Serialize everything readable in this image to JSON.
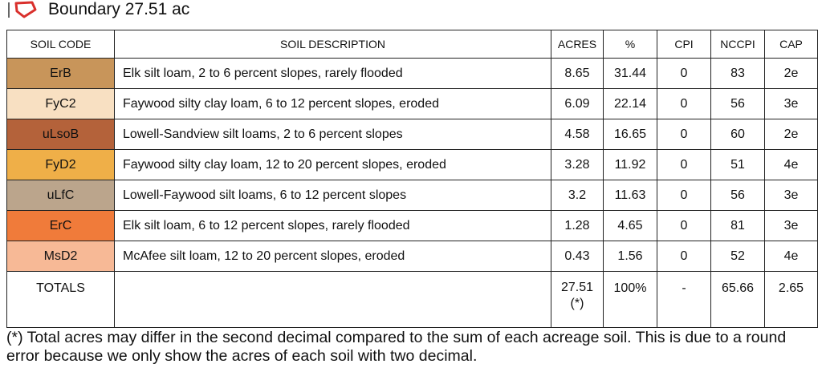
{
  "header": {
    "title": "Boundary 27.51 ac"
  },
  "table": {
    "columns": [
      "SOIL CODE",
      "SOIL DESCRIPTION",
      "ACRES",
      "%",
      "CPI",
      "NCCPI",
      "CAP"
    ],
    "rows": [
      {
        "code": "ErB",
        "color": "#c8955a",
        "description": "Elk silt loam, 2 to 6 percent slopes, rarely flooded",
        "acres": "8.65",
        "percent": "31.44",
        "cpi": "0",
        "nccpi": "83",
        "cap": "2e"
      },
      {
        "code": "FyC2",
        "color": "#f8e0c2",
        "description": "Faywood silty clay loam, 6 to 12 percent slopes, eroded",
        "acres": "6.09",
        "percent": "22.14",
        "cpi": "0",
        "nccpi": "56",
        "cap": "3e"
      },
      {
        "code": "uLsoB",
        "color": "#b4623a",
        "description": "Lowell-Sandview silt loams, 2 to 6 percent slopes",
        "acres": "4.58",
        "percent": "16.65",
        "cpi": "0",
        "nccpi": "60",
        "cap": "2e"
      },
      {
        "code": "FyD2",
        "color": "#efaf48",
        "description": "Faywood silty clay loam, 12 to 20 percent slopes, eroded",
        "acres": "3.28",
        "percent": "11.92",
        "cpi": "0",
        "nccpi": "51",
        "cap": "4e"
      },
      {
        "code": "uLfC",
        "color": "#bba58c",
        "description": "Lowell-Faywood silt loams, 6 to 12 percent slopes",
        "acres": "3.2",
        "percent": "11.63",
        "cpi": "0",
        "nccpi": "56",
        "cap": "3e"
      },
      {
        "code": "ErC",
        "color": "#f07b3a",
        "description": "Elk silt loam, 6 to 12 percent slopes, rarely flooded",
        "acres": "1.28",
        "percent": "4.65",
        "cpi": "0",
        "nccpi": "81",
        "cap": "3e"
      },
      {
        "code": "MsD2",
        "color": "#f7b996",
        "description": "McAfee silt loam, 12 to 20 percent slopes, eroded",
        "acres": "0.43",
        "percent": "1.56",
        "cpi": "0",
        "nccpi": "52",
        "cap": "4e"
      }
    ],
    "totals": {
      "label": "TOTALS",
      "acres": "27.51(*)",
      "percent": "100%",
      "cpi": "-",
      "nccpi": "65.66",
      "cap": "2.65"
    }
  },
  "footnote": "(*) Total acres may differ in the second decimal compared to the sum of each acreage soil. This is due to a round error because we only show the acres of each soil with two decimal."
}
